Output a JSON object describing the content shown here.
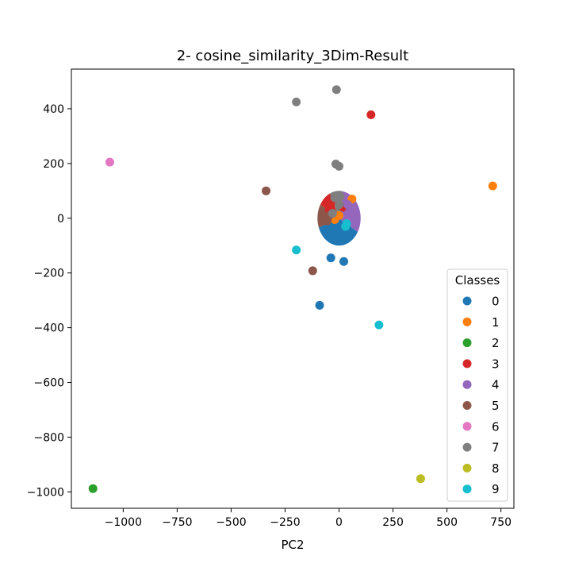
{
  "chart_data": {
    "type": "scatter",
    "title": "2- cosine_similarity_3Dim-Result",
    "xlabel": "PC2",
    "ylabel": "",
    "xlim": [
      -1240,
      810
    ],
    "ylim": [
      -1060,
      545
    ],
    "x_ticks": [
      -1000,
      -750,
      -500,
      -250,
      0,
      250,
      500,
      750
    ],
    "y_ticks": [
      400,
      200,
      0,
      -200,
      -400,
      -600,
      -800,
      -1000
    ],
    "x_tick_labels": [
      "−1000",
      "−750",
      "−500",
      "−250",
      "0",
      "250",
      "500",
      "750"
    ],
    "y_tick_labels": [
      "400",
      "200",
      "0",
      "−200",
      "−400",
      "−600",
      "−800",
      "−1000"
    ],
    "grid": false,
    "legend": {
      "title": "Classes",
      "placement": "lower-right",
      "entries": [
        "0",
        "1",
        "2",
        "3",
        "4",
        "5",
        "6",
        "7",
        "8",
        "9"
      ]
    },
    "cluster": {
      "center": [
        0,
        0
      ],
      "radius": [
        100,
        100
      ],
      "sectors": [
        {
          "class": "0",
          "start_deg": 200,
          "end_deg": 330
        },
        {
          "class": "4",
          "start_deg": -30,
          "end_deg": 80
        },
        {
          "class": "7",
          "start_deg": 80,
          "end_deg": 115
        },
        {
          "class": "3",
          "start_deg": 115,
          "end_deg": 150
        },
        {
          "class": "5",
          "start_deg": 150,
          "end_deg": 200
        }
      ]
    },
    "series": [
      {
        "name": "0",
        "color": "#1f77b4",
        "points": [
          [
            -90,
            -318
          ],
          [
            -38,
            -145
          ],
          [
            22,
            -158
          ],
          [
            10,
            -65
          ],
          [
            -5,
            -50
          ],
          [
            25,
            -70
          ]
        ]
      },
      {
        "name": "1",
        "color": "#ff7f0e",
        "points": [
          [
            712,
            118
          ],
          [
            60,
            70
          ],
          [
            0,
            10
          ],
          [
            -20,
            -5
          ]
        ]
      },
      {
        "name": "2",
        "color": "#2ca02c",
        "points": [
          [
            -1140,
            -988
          ]
        ]
      },
      {
        "name": "3",
        "color": "#d62728",
        "points": [
          [
            148,
            378
          ],
          [
            -30,
            60
          ],
          [
            -45,
            30
          ],
          [
            20,
            40
          ]
        ]
      },
      {
        "name": "4",
        "color": "#9467bd",
        "points": [
          [
            45,
            20
          ],
          [
            55,
            -10
          ],
          [
            40,
            50
          ]
        ]
      },
      {
        "name": "5",
        "color": "#8c564b",
        "points": [
          [
            -338,
            100
          ],
          [
            -122,
            -192
          ],
          [
            -55,
            -10
          ],
          [
            -45,
            10
          ]
        ]
      },
      {
        "name": "6",
        "color": "#e377c2",
        "points": [
          [
            -1062,
            205
          ]
        ]
      },
      {
        "name": "7",
        "color": "#7f7f7f",
        "points": [
          [
            -198,
            425
          ],
          [
            -12,
            470
          ],
          [
            -15,
            198
          ],
          [
            0,
            190
          ],
          [
            -20,
            75
          ],
          [
            5,
            80
          ],
          [
            -30,
            18
          ],
          [
            0,
            50
          ]
        ]
      },
      {
        "name": "8",
        "color": "#bcbd22",
        "points": [
          [
            378,
            -952
          ]
        ]
      },
      {
        "name": "9",
        "color": "#17becf",
        "points": [
          [
            -198,
            -116
          ],
          [
            185,
            -390
          ],
          [
            30,
            -30
          ],
          [
            35,
            -20
          ]
        ]
      }
    ]
  }
}
